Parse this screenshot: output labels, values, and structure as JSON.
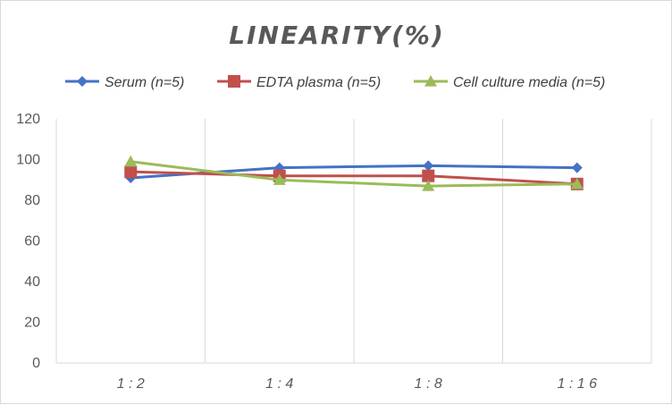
{
  "chart_data": {
    "type": "line",
    "title": "LINEARITY(%)",
    "xlabel": "",
    "ylabel": "",
    "categories": [
      "1:2",
      "1:4",
      "1:8",
      "1:16"
    ],
    "ylim": [
      0,
      120
    ],
    "yticks": [
      0,
      20,
      40,
      60,
      80,
      100,
      120
    ],
    "grid": "vertical",
    "legend_position": "top",
    "series": [
      {
        "name": "Serum (n=5)",
        "values": [
          91,
          96,
          97,
          96
        ],
        "color": "#4472c4",
        "marker": "diamond"
      },
      {
        "name": "EDTA plasma (n=5)",
        "values": [
          94,
          92,
          92,
          88
        ],
        "color": "#c0504d",
        "marker": "square"
      },
      {
        "name": "Cell culture media (n=5)",
        "values": [
          99,
          90,
          87,
          88
        ],
        "color": "#9bbb59",
        "marker": "triangle"
      }
    ]
  }
}
